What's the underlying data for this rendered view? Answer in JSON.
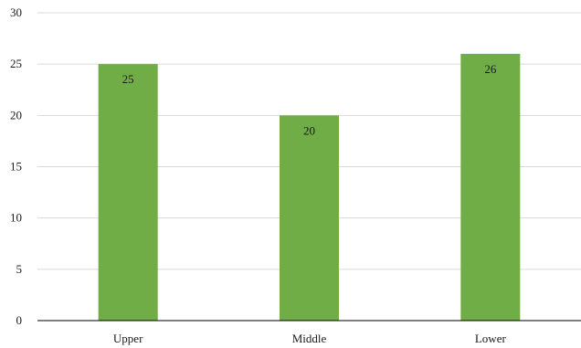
{
  "chart_data": {
    "type": "bar",
    "categories": [
      "Upper",
      "Middle",
      "Lower"
    ],
    "values": [
      25,
      20,
      26
    ],
    "data_labels": [
      "25",
      "20",
      "26"
    ],
    "title": "",
    "xlabel": "",
    "ylabel": "",
    "ylim": [
      0,
      30
    ],
    "y_ticks": [
      0,
      5,
      10,
      15,
      20,
      25,
      30
    ],
    "y_tick_labels": [
      "0",
      "5",
      "10",
      "15",
      "20",
      "25",
      "30"
    ],
    "grid": true,
    "legend": "none",
    "bar_color": "#70ad47"
  }
}
